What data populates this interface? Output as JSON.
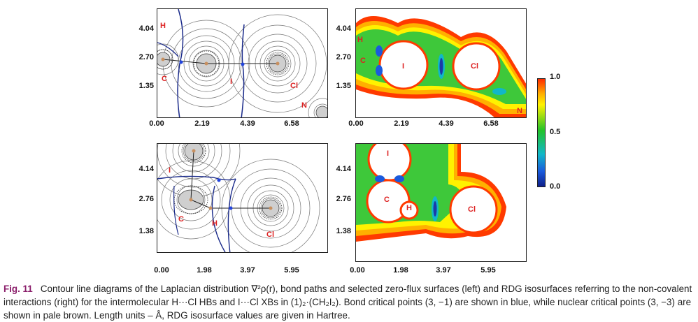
{
  "figure": {
    "top_left": {
      "y_ticks": [
        "4.04",
        "2.70",
        "1.35"
      ],
      "x_ticks": [
        "0.00",
        "2.19",
        "4.39",
        "6.58"
      ],
      "atoms": [
        "H",
        "C",
        "I",
        "Cl",
        "N"
      ]
    },
    "top_right": {
      "y_ticks": [
        "4.04",
        "2.70",
        "1.35"
      ],
      "x_ticks": [
        "0.00",
        "2.19",
        "4.39",
        "6.58"
      ],
      "atoms": [
        "H",
        "C",
        "I",
        "Cl",
        "N"
      ]
    },
    "bottom_left": {
      "y_ticks": [
        "4.14",
        "2.76",
        "1.38"
      ],
      "x_ticks": [
        "0.00",
        "1.98",
        "3.97",
        "5.95"
      ],
      "atoms": [
        "I",
        "C",
        "H",
        "Cl"
      ]
    },
    "bottom_right": {
      "y_ticks": [
        "4.14",
        "2.76",
        "1.38"
      ],
      "x_ticks": [
        "0.00",
        "1.98",
        "3.97",
        "5.95"
      ],
      "atoms": [
        "I",
        "C",
        "H",
        "Cl"
      ]
    },
    "colorbar": {
      "ticks": [
        "1.0",
        "0.5",
        "0.0"
      ],
      "colors": [
        "#ff2a00",
        "#ffb000",
        "#fff200",
        "#22c22a",
        "#11b7c8",
        "#1a5adc",
        "#0f1f88"
      ]
    }
  },
  "caption": {
    "fig_label": "Fig. 11",
    "text": "Contour line diagrams of the Laplacian distribution ∇²ρ(r), bond paths and selected zero-flux surfaces (left) and RDG isosurfaces referring to the non-covalent interactions (right) for the intermolecular H···Cl HBs and I···Cl XBs in (1)₂·(CH₂I₂). Bond critical points (3, −1) are shown in blue, while nuclear critical points (3, −3) are shown in pale brown. Length units – Å, RDG isosurface values are given in Hartree."
  }
}
